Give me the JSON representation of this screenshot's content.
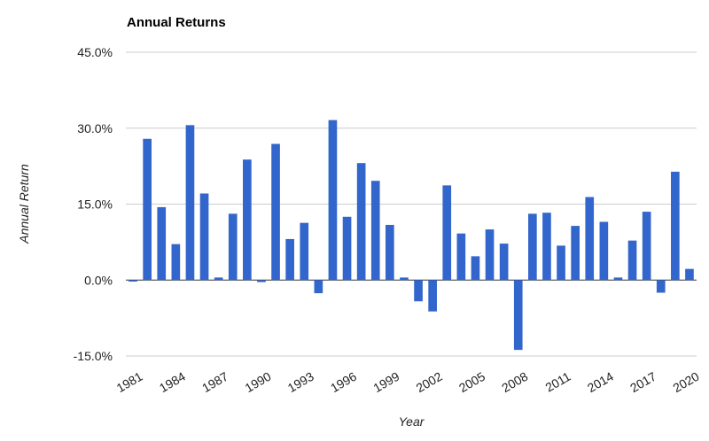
{
  "chart_data": {
    "type": "bar",
    "title": "Annual Returns",
    "xlabel": "Year",
    "ylabel": "Annual Return",
    "ylim": [
      -15,
      45
    ],
    "y_ticks": [
      {
        "value": 45,
        "label": "45.0%"
      },
      {
        "value": 30,
        "label": "30.0%"
      },
      {
        "value": 15,
        "label": "15.0%"
      },
      {
        "value": 0,
        "label": "0.0%"
      },
      {
        "value": -15,
        "label": "-15.0%"
      }
    ],
    "x_tick_labels": [
      "1981",
      "1984",
      "1987",
      "1990",
      "1993",
      "1996",
      "1999",
      "2002",
      "2005",
      "2008",
      "2011",
      "2014",
      "2017",
      "2020"
    ],
    "grid": true,
    "legend": "none",
    "bar_color": "#3366cc",
    "categories": [
      "1981",
      "1982",
      "1983",
      "1984",
      "1985",
      "1986",
      "1987",
      "1988",
      "1989",
      "1990",
      "1991",
      "1992",
      "1993",
      "1994",
      "1995",
      "1996",
      "1997",
      "1998",
      "1999",
      "2000",
      "2001",
      "2002",
      "2003",
      "2004",
      "2005",
      "2006",
      "2007",
      "2008",
      "2009",
      "2010",
      "2011",
      "2012",
      "2013",
      "2014",
      "2015",
      "2016",
      "2017",
      "2018",
      "2019",
      "2020"
    ],
    "values": [
      -0.3,
      27.9,
      14.4,
      7.1,
      30.6,
      17.1,
      0.5,
      13.1,
      23.8,
      -0.4,
      26.9,
      8.1,
      11.3,
      -2.6,
      31.6,
      12.5,
      23.1,
      19.6,
      10.9,
      0.5,
      -4.2,
      -6.2,
      18.7,
      9.2,
      4.7,
      10.0,
      7.2,
      -13.8,
      13.1,
      13.3,
      6.8,
      10.7,
      16.4,
      11.5,
      0.5,
      7.8,
      13.5,
      -2.5,
      21.4,
      2.2
    ]
  }
}
